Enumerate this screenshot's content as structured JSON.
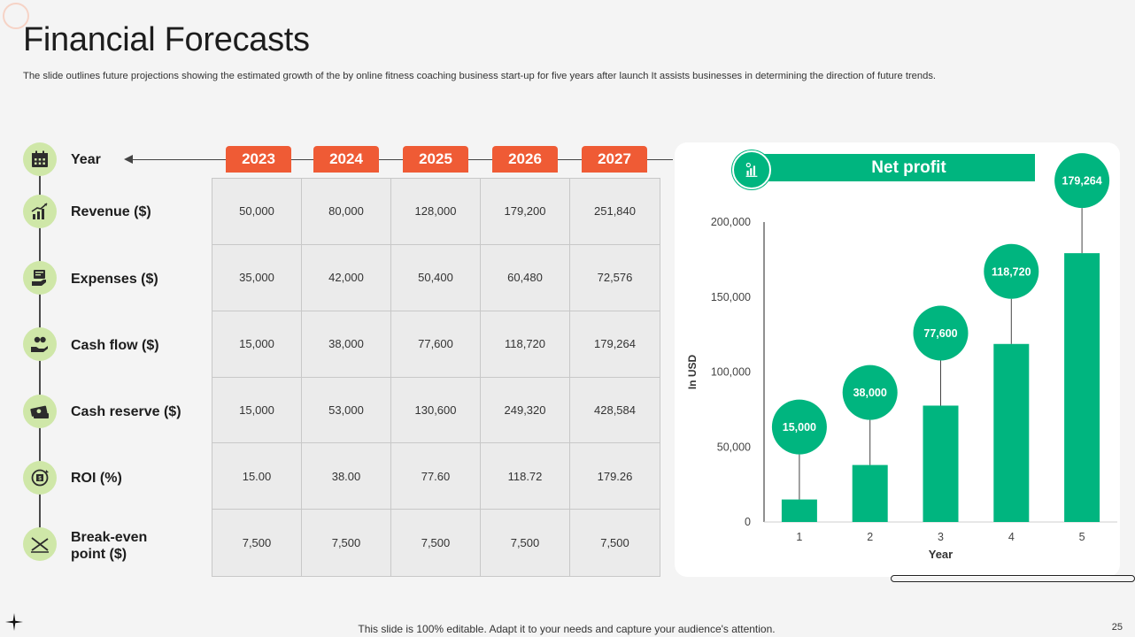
{
  "header": {
    "title": "Financial Forecasts",
    "subtitle": "The slide outlines future projections showing the estimated growth of the by online fitness coaching business start-up for five years after launch It assists businesses in determining the direction of future trends."
  },
  "table": {
    "year_label": "Year",
    "years": [
      "2023",
      "2024",
      "2025",
      "2026",
      "2027"
    ],
    "rows": [
      {
        "label": "Revenue ($)",
        "icon": "revenue-chart-icon",
        "values": [
          "50,000",
          "80,000",
          "128,000",
          "179,200",
          "251,840"
        ]
      },
      {
        "label": "Expenses ($)",
        "icon": "expenses-bills-icon",
        "values": [
          "35,000",
          "42,000",
          "50,400",
          "60,480",
          "72,576"
        ]
      },
      {
        "label": "Cash flow ($)",
        "icon": "cash-flow-hand-icon",
        "values": [
          "15,000",
          "38,000",
          "77,600",
          "118,720",
          "179,264"
        ]
      },
      {
        "label": "Cash reserve ($)",
        "icon": "cash-stack-icon",
        "values": [
          "15,000",
          "53,000",
          "130,600",
          "249,320",
          "428,584"
        ]
      },
      {
        "label": "ROI (%)",
        "icon": "roi-icon",
        "values": [
          "15.00",
          "38.00",
          "77.60",
          "118.72",
          "179.26"
        ]
      },
      {
        "label": "Break-even\npoint ($)",
        "label_line1": "Break-even",
        "label_line2": "point ($)",
        "icon": "break-even-icon",
        "values": [
          "7,500",
          "7,500",
          "7,500",
          "7,500",
          "7,500"
        ]
      }
    ]
  },
  "chart_data": {
    "type": "bar",
    "title": "Net profit",
    "categories": [
      "1",
      "2",
      "3",
      "4",
      "5"
    ],
    "values": [
      15000,
      38000,
      77600,
      118720,
      179264
    ],
    "data_labels": [
      "15,000",
      "38,000",
      "77,600",
      "118,720",
      "179,264"
    ],
    "xlabel": "Year",
    "ylabel": "In USD",
    "ylim": [
      0,
      200000
    ],
    "yticks": [
      0,
      50000,
      100000,
      150000,
      200000
    ],
    "ytick_labels": [
      "0",
      "50,000",
      "100,000",
      "150,000",
      "200,000"
    ],
    "grid": false,
    "legend": "none",
    "color": "#00b57f"
  },
  "colors": {
    "accent_orange": "#ef5b35",
    "accent_green": "#00b57f",
    "icon_bg": "#cfe7a8"
  },
  "footer": {
    "text": "This slide is 100% editable. Adapt it to your needs and capture your audience's attention.",
    "page_number": "25"
  }
}
